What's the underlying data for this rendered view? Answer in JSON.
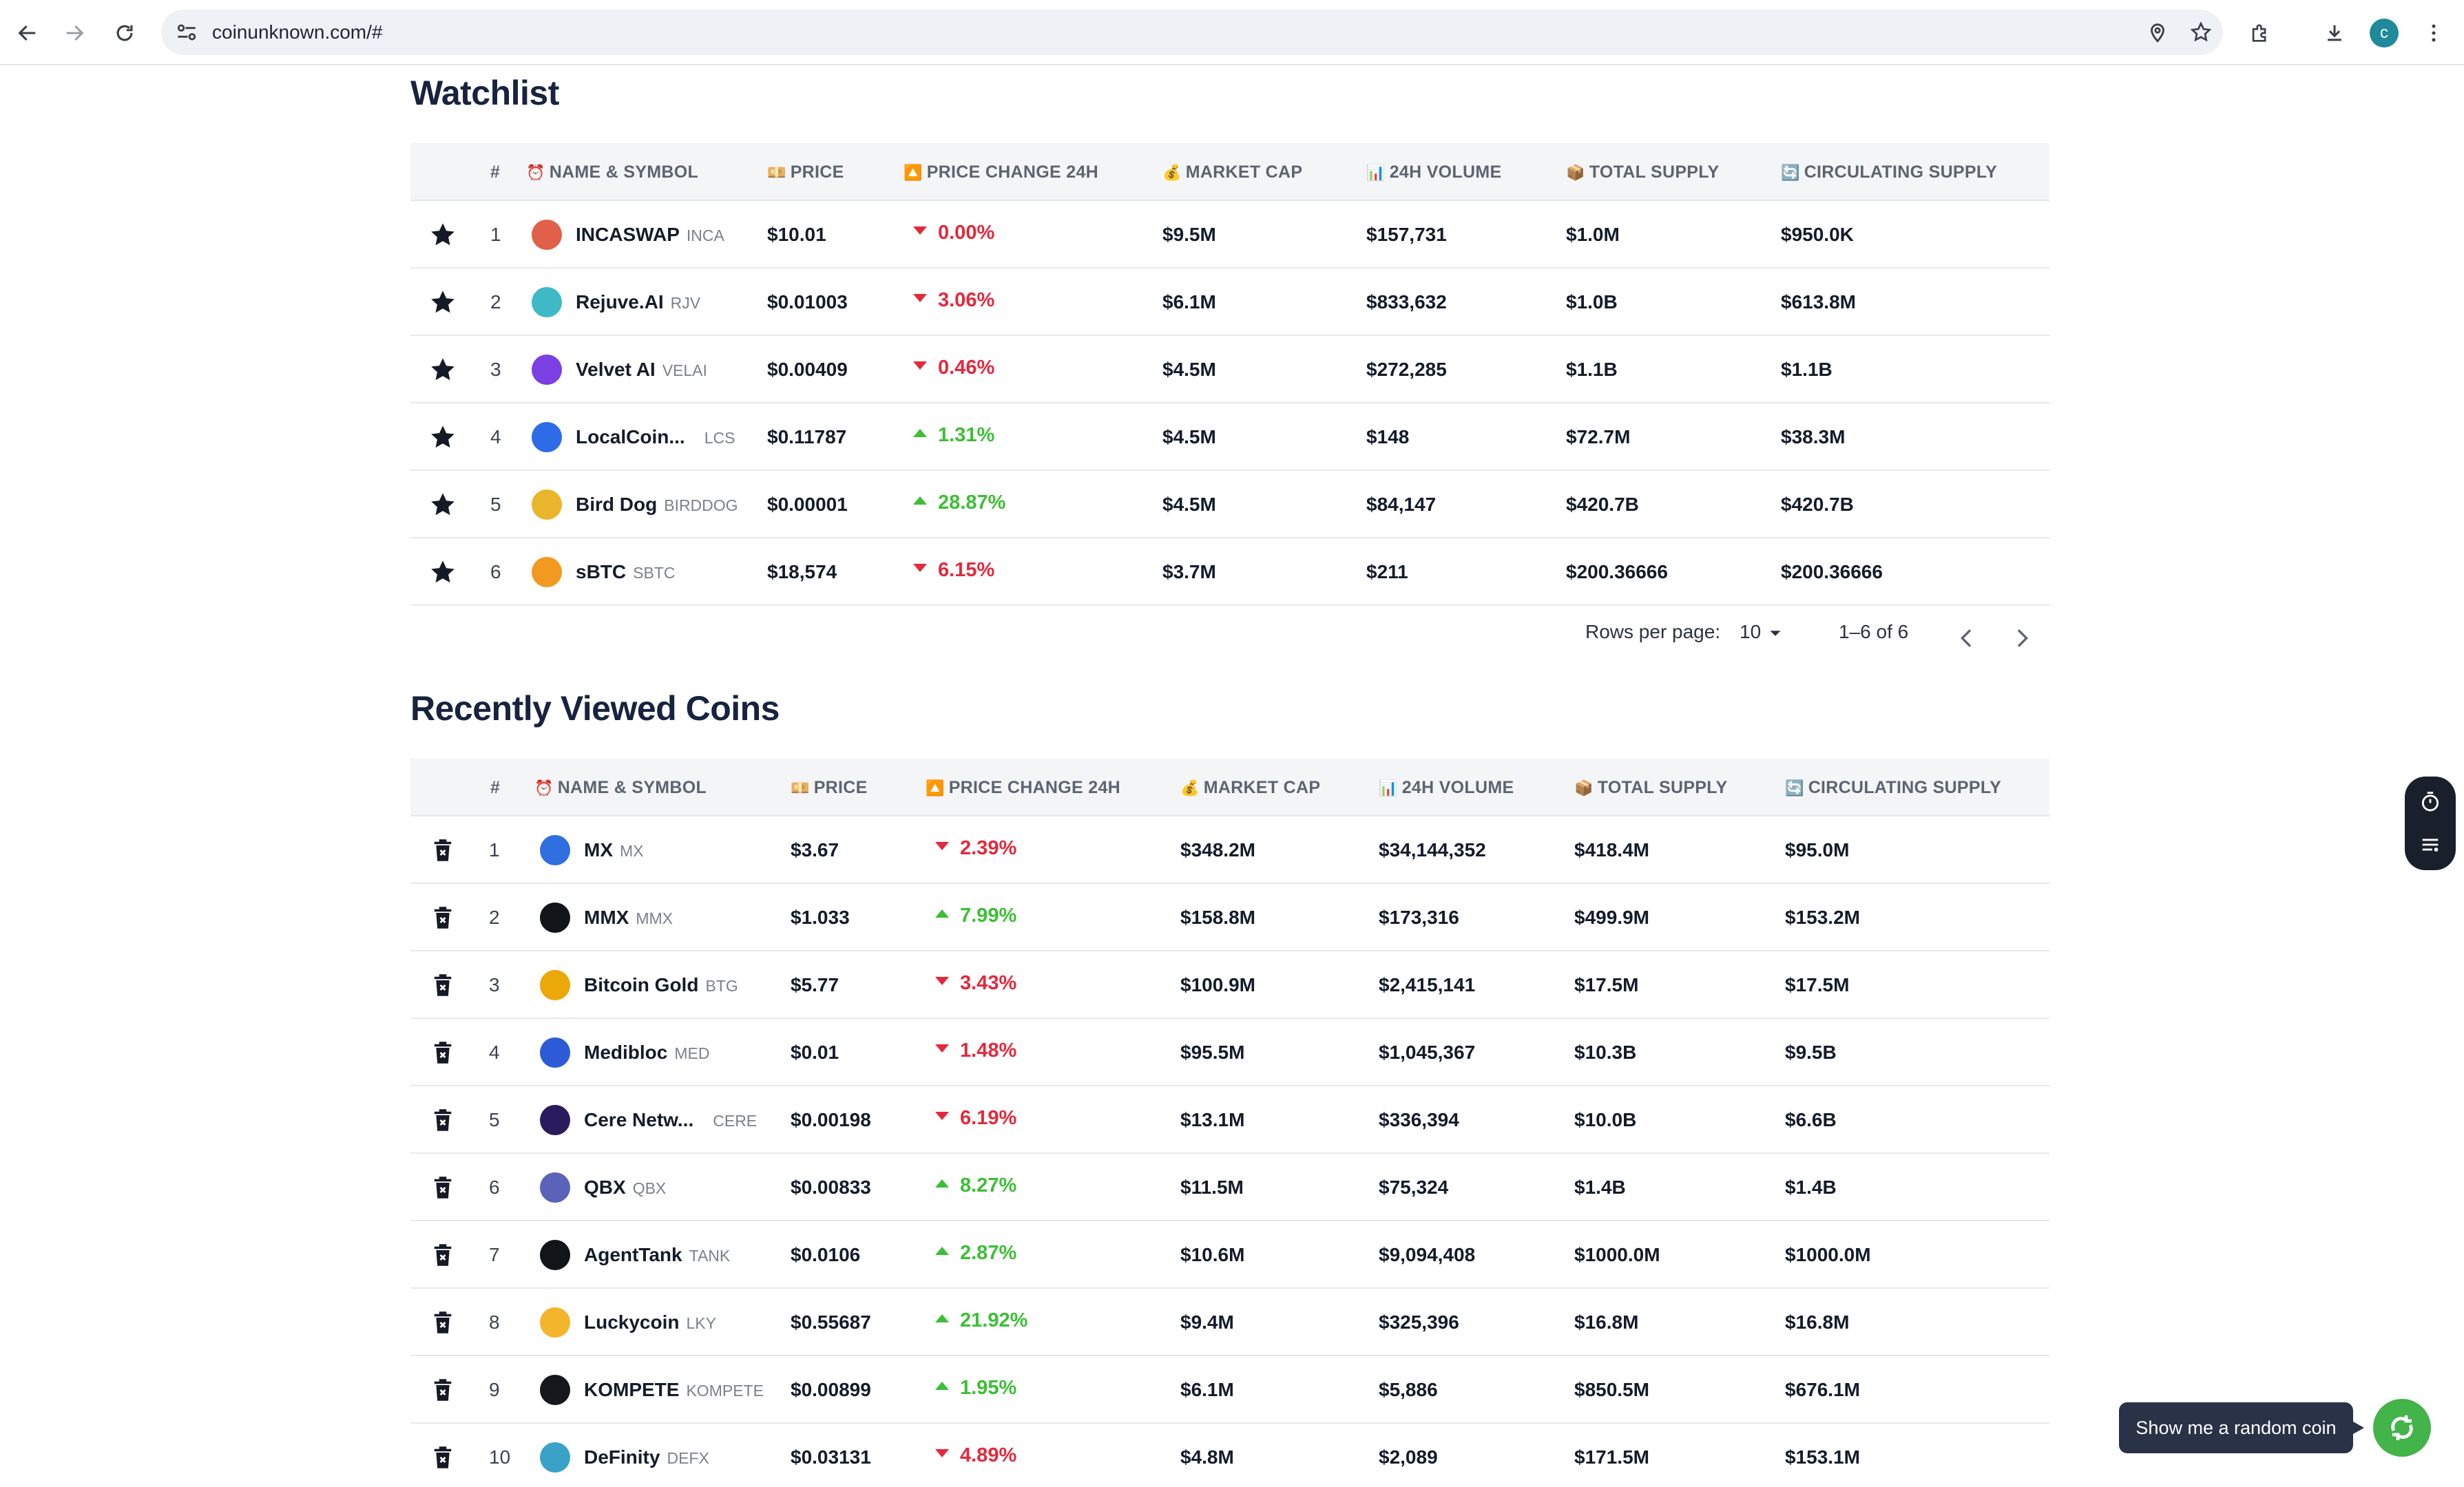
{
  "browser": {
    "url": "coinunknown.com/#",
    "avatar_letter": "c"
  },
  "watchlist": {
    "title": "Watchlist",
    "columns": [
      "#",
      "NAME & SYMBOL",
      "PRICE",
      "PRICE CHANGE 24H",
      "MARKET CAP",
      "24H VOLUME",
      "TOTAL SUPPLY",
      "CIRCULATING SUPPLY"
    ],
    "column_icons": [
      "",
      "⏰",
      "💴",
      "🔼",
      "💰",
      "📊",
      "📦",
      "🔄"
    ],
    "rows": [
      {
        "rank": "1",
        "name": "INCASWAP",
        "symbol": "INCA",
        "price": "$10.01",
        "change": "0.00%",
        "direction": "down",
        "market_cap": "$9.5M",
        "volume": "$157,731",
        "total_supply": "$1.0M",
        "circulating": "$950.0K",
        "icon_color": "#e0604a"
      },
      {
        "rank": "2",
        "name": "Rejuve.AI",
        "symbol": "RJV",
        "price": "$0.01003",
        "change": "3.06%",
        "direction": "down",
        "market_cap": "$6.1M",
        "volume": "$833,632",
        "total_supply": "$1.0B",
        "circulating": "$613.8M",
        "icon_color": "#3fb9c6"
      },
      {
        "rank": "3",
        "name": "Velvet AI",
        "symbol": "VELAI",
        "price": "$0.00409",
        "change": "0.46%",
        "direction": "down",
        "market_cap": "$4.5M",
        "volume": "$272,285",
        "total_supply": "$1.1B",
        "circulating": "$1.1B",
        "icon_color": "#7b3fe4"
      },
      {
        "rank": "4",
        "name": "LocalCoin...",
        "symbol": "LCS",
        "price": "$0.11787",
        "change": "1.31%",
        "direction": "up",
        "market_cap": "$4.5M",
        "volume": "$148",
        "total_supply": "$72.7M",
        "circulating": "$38.3M",
        "icon_color": "#2e6be6"
      },
      {
        "rank": "5",
        "name": "Bird Dog",
        "symbol": "BIRDDOG",
        "price": "$0.00001",
        "change": "28.87%",
        "direction": "up",
        "market_cap": "$4.5M",
        "volume": "$84,147",
        "total_supply": "$420.7B",
        "circulating": "$420.7B",
        "icon_color": "#e9b52a"
      },
      {
        "rank": "6",
        "name": "sBTC",
        "symbol": "SBTC",
        "price": "$18,574",
        "change": "6.15%",
        "direction": "down",
        "market_cap": "$3.7M",
        "volume": "$211",
        "total_supply": "$200.36666",
        "circulating": "$200.36666",
        "icon_color": "#f29a1f"
      }
    ],
    "pager": {
      "rows_label": "Rows per page:",
      "rows_value": "10",
      "range": "1–6 of 6"
    }
  },
  "recent": {
    "title": "Recently Viewed Coins",
    "columns": [
      "#",
      "NAME & SYMBOL",
      "PRICE",
      "PRICE CHANGE 24H",
      "MARKET CAP",
      "24H VOLUME",
      "TOTAL SUPPLY",
      "CIRCULATING SUPPLY"
    ],
    "column_icons": [
      "",
      "⏰",
      "💴",
      "🔼",
      "💰",
      "📊",
      "📦",
      "🔄"
    ],
    "rows": [
      {
        "rank": "1",
        "name": "MX",
        "symbol": "MX",
        "price": "$3.67",
        "change": "2.39%",
        "direction": "down",
        "market_cap": "$348.2M",
        "volume": "$34,144,352",
        "total_supply": "$418.4M",
        "circulating": "$95.0M",
        "icon_color": "#2f6fe0"
      },
      {
        "rank": "2",
        "name": "MMX",
        "symbol": "MMX",
        "price": "$1.033",
        "change": "7.99%",
        "direction": "up",
        "market_cap": "$158.8M",
        "volume": "$173,316",
        "total_supply": "$499.9M",
        "circulating": "$153.2M",
        "icon_color": "#111418"
      },
      {
        "rank": "3",
        "name": "Bitcoin Gold",
        "symbol": "BTG",
        "price": "$5.77",
        "change": "3.43%",
        "direction": "down",
        "market_cap": "$100.9M",
        "volume": "$2,415,141",
        "total_supply": "$17.5M",
        "circulating": "$17.5M",
        "icon_color": "#eba809"
      },
      {
        "rank": "4",
        "name": "Medibloc",
        "symbol": "MED",
        "price": "$0.01",
        "change": "1.48%",
        "direction": "down",
        "market_cap": "$95.5M",
        "volume": "$1,045,367",
        "total_supply": "$10.3B",
        "circulating": "$9.5B",
        "icon_color": "#2d5bd8"
      },
      {
        "rank": "5",
        "name": "Cere Netw...",
        "symbol": "CERE",
        "price": "$0.00198",
        "change": "6.19%",
        "direction": "down",
        "market_cap": "$13.1M",
        "volume": "$336,394",
        "total_supply": "$10.0B",
        "circulating": "$6.6B",
        "icon_color": "#2a1a5e"
      },
      {
        "rank": "6",
        "name": "QBX",
        "symbol": "QBX",
        "price": "$0.00833",
        "change": "8.27%",
        "direction": "up",
        "market_cap": "$11.5M",
        "volume": "$75,324",
        "total_supply": "$1.4B",
        "circulating": "$1.4B",
        "icon_color": "#5a63b8"
      },
      {
        "rank": "7",
        "name": "AgentTank",
        "symbol": "TANK",
        "price": "$0.0106",
        "change": "2.87%",
        "direction": "up",
        "market_cap": "$10.6M",
        "volume": "$9,094,408",
        "total_supply": "$1000.0M",
        "circulating": "$1000.0M",
        "icon_color": "#111418"
      },
      {
        "rank": "8",
        "name": "Luckycoin",
        "symbol": "LKY",
        "price": "$0.55687",
        "change": "21.92%",
        "direction": "up",
        "market_cap": "$9.4M",
        "volume": "$325,396",
        "total_supply": "$16.8M",
        "circulating": "$16.8M",
        "icon_color": "#f2b52c"
      },
      {
        "rank": "9",
        "name": "KOMPETE",
        "symbol": "KOMPETE",
        "price": "$0.00899",
        "change": "1.95%",
        "direction": "up",
        "market_cap": "$6.1M",
        "volume": "$5,886",
        "total_supply": "$850.5M",
        "circulating": "$676.1M",
        "icon_color": "#15171c"
      },
      {
        "rank": "10",
        "name": "DeFinity",
        "symbol": "DEFX",
        "price": "$0.03131",
        "change": "4.89%",
        "direction": "down",
        "market_cap": "$4.8M",
        "volume": "$2,089",
        "total_supply": "$171.5M",
        "circulating": "$153.1M",
        "icon_color": "#3aa2c6"
      }
    ]
  },
  "floating": {
    "tooltip": "Show me a random coin"
  },
  "icons": {
    "back": "arrow-left-icon",
    "forward": "arrow-right-icon",
    "reload": "reload-icon",
    "star": "star-icon",
    "trash": "delete-icon",
    "timer": "timer-icon",
    "list": "list-icon",
    "random": "refresh-icon"
  }
}
